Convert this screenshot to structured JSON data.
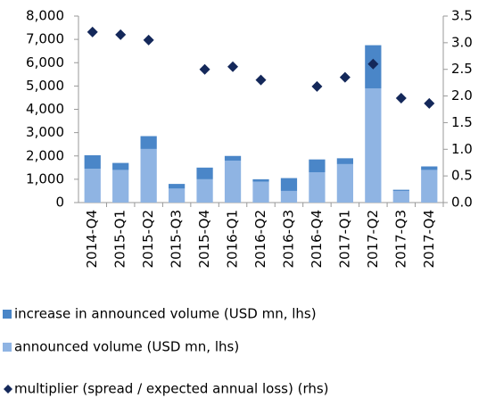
{
  "chart_data": {
    "type": "bar",
    "categories": [
      "2014-Q4",
      "2015-Q1",
      "2015-Q2",
      "2015-Q3",
      "2015-Q4",
      "2016-Q1",
      "2016-Q2",
      "2016-Q3",
      "2016-Q4",
      "2017-Q1",
      "2017-Q2",
      "2017-Q3",
      "2017-Q4"
    ],
    "series": [
      {
        "name": "increase in announced volume (USD mn, lhs)",
        "color": "#4a86c8",
        "values": [
          580,
          300,
          550,
          200,
          500,
          200,
          100,
          550,
          550,
          250,
          1850,
          50,
          150
        ]
      },
      {
        "name": "announced volume (USD mn, lhs)",
        "color": "#8fb4e3",
        "values": [
          1450,
          1400,
          2300,
          600,
          1000,
          1800,
          900,
          500,
          1300,
          1650,
          4900,
          500,
          1400
        ]
      },
      {
        "name": "multiplier (spread / expected annual loss) (rhs)",
        "color": "#14285a",
        "axis": "y2",
        "values": [
          3.2,
          3.15,
          3.05,
          null,
          2.5,
          2.55,
          2.3,
          null,
          2.18,
          2.35,
          2.6,
          1.96,
          1.86
        ]
      }
    ],
    "ylim": [
      0,
      8000
    ],
    "yticks": [
      0,
      {
        "value": 1000,
        "label": "1,000"
      },
      {
        "value": 2000,
        "label": "2,000"
      },
      {
        "value": 3000,
        "label": "3,000"
      },
      {
        "value": 4000,
        "label": "4,000"
      },
      {
        "value": 5000,
        "label": "5,000"
      },
      {
        "value": 6000,
        "label": "6,000"
      },
      {
        "value": 7000,
        "label": "7,000"
      },
      {
        "value": 8000,
        "label": "8,000"
      }
    ],
    "y2lim": [
      0,
      3.5
    ],
    "y2ticks": [
      {
        "value": 0,
        "label": "0.0"
      },
      0.5,
      {
        "value": 1,
        "label": "1.0"
      },
      1.5,
      {
        "value": 2,
        "label": "2.0"
      },
      2.5,
      {
        "value": 3,
        "label": "3.0"
      },
      3.5
    ],
    "grid": false
  }
}
